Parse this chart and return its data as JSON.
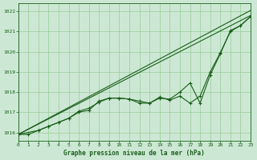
{
  "bg_color": "#cce8d4",
  "grid_color": "#99cc99",
  "line_color": "#1a5e1a",
  "title": "Graphe pression niveau de la mer (hPa)",
  "xlim": [
    0,
    23
  ],
  "ylim": [
    1015.6,
    1022.4
  ],
  "xticks": [
    0,
    1,
    2,
    3,
    4,
    5,
    6,
    7,
    8,
    9,
    10,
    11,
    12,
    13,
    14,
    15,
    16,
    17,
    18,
    19,
    20,
    21,
    22,
    23
  ],
  "yticks": [
    1016,
    1017,
    1018,
    1019,
    1020,
    1021,
    1022
  ],
  "line1_x": [
    0,
    1,
    2,
    3,
    4,
    5,
    6,
    7,
    8,
    9,
    10,
    11,
    12,
    13,
    14,
    15,
    16,
    17,
    18,
    19,
    20,
    21,
    22,
    23
  ],
  "line1_y": [
    1015.9,
    1015.9,
    1016.1,
    1016.3,
    1016.5,
    1016.7,
    1017.0,
    1017.1,
    1017.55,
    1017.7,
    1017.7,
    1017.65,
    1017.45,
    1017.45,
    1017.75,
    1017.6,
    1017.8,
    1017.45,
    1017.8,
    1019.0,
    1019.95,
    1021.0,
    1021.3,
    1021.75
  ],
  "line2_x": [
    0,
    2,
    3,
    4,
    5,
    6,
    7,
    8,
    9,
    10,
    11,
    12,
    13,
    14,
    15,
    16,
    17,
    18,
    19,
    20,
    21,
    22,
    23
  ],
  "line2_y": [
    1015.9,
    1016.1,
    1016.3,
    1016.5,
    1016.7,
    1017.05,
    1017.2,
    1017.5,
    1017.7,
    1017.7,
    1017.65,
    1017.55,
    1017.45,
    1017.7,
    1017.65,
    1018.0,
    1018.45,
    1017.45,
    1018.85,
    1019.9,
    1021.05,
    1021.3,
    1021.75
  ],
  "line3_x": [
    0,
    23
  ],
  "line3_y": [
    1015.9,
    1021.8
  ],
  "line4_x": [
    0,
    23
  ],
  "line4_y": [
    1015.9,
    1022.05
  ]
}
